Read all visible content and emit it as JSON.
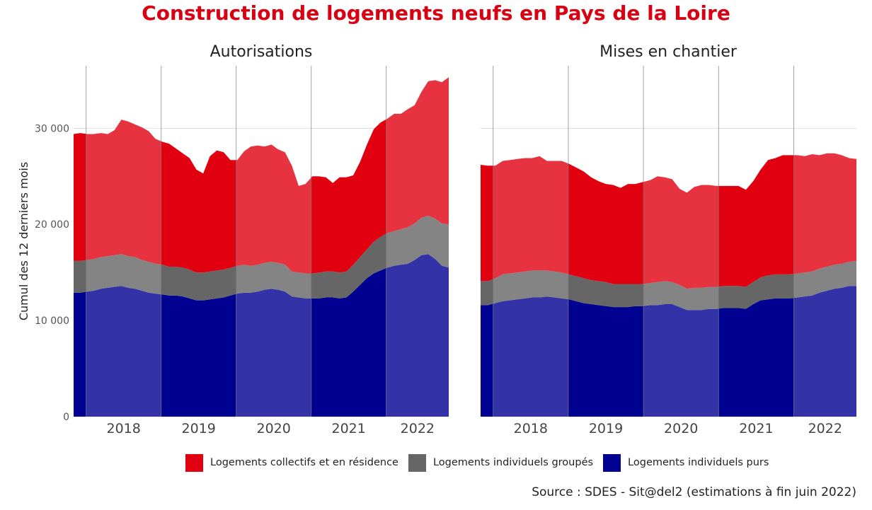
{
  "chart_data": {
    "type": "area",
    "title": "Construction de logements neufs en Pays de la Loire",
    "ylabel": "Cumul des 12 derniers mois",
    "xlabel": "",
    "ylim": [
      0,
      36500
    ],
    "yticks": [
      0,
      10000,
      20000,
      30000
    ],
    "ytick_labels": [
      "0",
      "10 000",
      "20 000",
      "30 000"
    ],
    "year_labels": [
      "2018",
      "2019",
      "2020",
      "2021",
      "2022"
    ],
    "stacked": true,
    "grid": true,
    "legend_position": "bottom",
    "source": "Source : SDES - Sit@del2 (estimations à fin juin 2022)",
    "series_colors": {
      "collectifs": "#e1000f",
      "groupes": "#666666",
      "purs": "#000091"
    },
    "legend": [
      {
        "label": "Logements collectifs et en résidence",
        "color": "#e1000f"
      },
      {
        "label": "Logements individuels groupés",
        "color": "#666666"
      },
      {
        "label": "Logements individuels purs",
        "color": "#000091"
      }
    ],
    "panels": [
      {
        "title": "Autorisations",
        "x_start": "2017-06",
        "x_end": "2022-06",
        "series": [
          {
            "name": "Logements individuels purs",
            "values": [
              12900,
              12900,
              13000,
              13100,
              13300,
              13400,
              13500,
              13600,
              13400,
              13300,
              13100,
              12900,
              12800,
              12700,
              12600,
              12600,
              12500,
              12300,
              12100,
              12100,
              12200,
              12300,
              12400,
              12600,
              12800,
              12900,
              12900,
              13000,
              13200,
              13300,
              13200,
              13000,
              12500,
              12400,
              12300,
              12300,
              12300,
              12400,
              12400,
              12300,
              12400,
              13000,
              13700,
              14400,
              14900,
              15200,
              15500,
              15700,
              15800,
              15900,
              16300,
              16800,
              16900,
              16400,
              15700,
              15500
            ]
          },
          {
            "name": "Logements individuels groupés",
            "values": [
              3300,
              3300,
              3300,
              3300,
              3300,
              3300,
              3300,
              3300,
              3300,
              3300,
              3200,
              3200,
              3100,
              3100,
              3000,
              3000,
              3000,
              3000,
              2900,
              2900,
              2900,
              2900,
              2900,
              2900,
              2900,
              2900,
              2800,
              2800,
              2800,
              2800,
              2800,
              2800,
              2600,
              2600,
              2600,
              2600,
              2700,
              2700,
              2700,
              2700,
              2700,
              2800,
              2900,
              3000,
              3300,
              3500,
              3600,
              3600,
              3700,
              3800,
              3800,
              3900,
              4000,
              4200,
              4400,
              4500
            ]
          },
          {
            "name": "Logements collectifs et en résidence",
            "values": [
              13200,
              13300,
              13100,
              13000,
              12900,
              12700,
              13000,
              14000,
              14000,
              13800,
              13800,
              13600,
              13000,
              12800,
              12800,
              12300,
              11900,
              11600,
              10700,
              10300,
              12000,
              12500,
              12200,
              11200,
              11000,
              11800,
              12400,
              12400,
              12100,
              12200,
              11800,
              11700,
              11000,
              9000,
              9300,
              10100,
              10000,
              9800,
              9200,
              9900,
              9800,
              9300,
              9900,
              10900,
              11700,
              11900,
              11900,
              12200,
              12000,
              12300,
              12300,
              13100,
              14000,
              14400,
              14700,
              15300
            ]
          }
        ]
      },
      {
        "title": "Mises en chantier",
        "x_start": "2017-06",
        "x_end": "2022-06",
        "series": [
          {
            "name": "Logements individuels purs",
            "values": [
              11600,
              11600,
              11800,
              12000,
              12100,
              12200,
              12300,
              12400,
              12400,
              12500,
              12400,
              12300,
              12200,
              12000,
              11800,
              11700,
              11600,
              11500,
              11400,
              11400,
              11400,
              11500,
              11500,
              11600,
              11600,
              11700,
              11700,
              11400,
              11100,
              11100,
              11100,
              11200,
              11200,
              11300,
              11300,
              11300,
              11200,
              11700,
              12100,
              12200,
              12300,
              12300,
              12300,
              12400,
              12500,
              12600,
              12900,
              13100,
              13300,
              13400,
              13600,
              13600
            ]
          },
          {
            "name": "Logements individuels groupés",
            "values": [
              2500,
              2500,
              2600,
              2800,
              2800,
              2800,
              2800,
              2800,
              2800,
              2700,
              2700,
              2700,
              2600,
              2600,
              2600,
              2500,
              2500,
              2500,
              2400,
              2400,
              2400,
              2300,
              2300,
              2300,
              2400,
              2400,
              2300,
              2300,
              2200,
              2300,
              2300,
              2300,
              2300,
              2300,
              2300,
              2300,
              2300,
              2300,
              2400,
              2500,
              2500,
              2500,
              2500,
              2500,
              2500,
              2500,
              2500,
              2500,
              2500,
              2500,
              2500,
              2600
            ]
          },
          {
            "name": "Logements collectifs et en résidence",
            "values": [
              12100,
              12000,
              11700,
              11800,
              11800,
              11800,
              11800,
              11700,
              11900,
              11400,
              11500,
              11600,
              11500,
              11300,
              11100,
              10700,
              10400,
              10200,
              10300,
              10000,
              10400,
              10400,
              10600,
              10700,
              11000,
              10800,
              10700,
              10000,
              10000,
              10500,
              10700,
              10600,
              10500,
              10400,
              10400,
              10400,
              10100,
              10500,
              11200,
              12000,
              12100,
              12400,
              12400,
              12300,
              12100,
              12200,
              11800,
              11800,
              11600,
              11300,
              10800,
              10600
            ]
          }
        ]
      }
    ]
  }
}
